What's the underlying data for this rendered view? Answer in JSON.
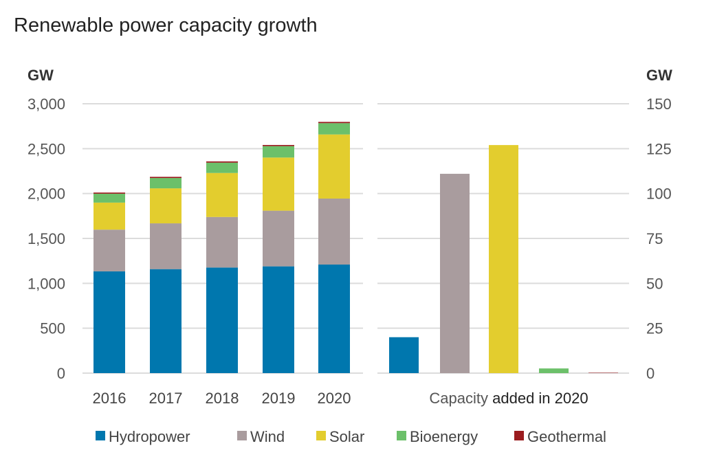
{
  "chart_data": [
    {
      "type": "bar",
      "stacked": true,
      "title": "Renewable power capacity growth",
      "ylabel": "GW",
      "categories": [
        "2016",
        "2017",
        "2018",
        "2019",
        "2020"
      ],
      "ylim": [
        0,
        3000
      ],
      "yticks": [
        "0",
        "500",
        "1,000",
        "1,500",
        "2,000",
        "2,500",
        "3,000"
      ],
      "ytick_values": [
        0,
        500,
        1000,
        1500,
        2000,
        2500,
        3000
      ],
      "grid": true,
      "series": [
        {
          "name": "Hydropower",
          "color": "#0077ae",
          "values": [
            1133,
            1158,
            1176,
            1189,
            1209
          ]
        },
        {
          "name": "Wind",
          "color": "#a99c9e",
          "values": [
            465,
            510,
            563,
            620,
            735
          ]
        },
        {
          "name": "Solar",
          "color": "#e3cd2e",
          "values": [
            301,
            390,
            490,
            592,
            714
          ]
        },
        {
          "name": "Bioenergy",
          "color": "#6cc06a",
          "values": [
            99,
            115,
            115,
            127,
            126
          ]
        },
        {
          "name": "Geothermal",
          "color": "#9b1c1f",
          "values": [
            13,
            13,
            14,
            13,
            14
          ]
        }
      ]
    },
    {
      "type": "bar",
      "ylabel": "GW",
      "xlabel_prefix": "Capacity",
      "xlabel_suffix": "added in 2020",
      "categories": [
        "Hydropower",
        "Wind",
        "Solar",
        "Bioenergy",
        "Geothermal"
      ],
      "values": [
        20,
        111,
        127,
        2.6,
        0.2
      ],
      "colors": [
        "#0077ae",
        "#a99c9e",
        "#e3cd2e",
        "#6cc06a",
        "#9b1c1f"
      ],
      "ylim": [
        0,
        150
      ],
      "yticks": [
        "0",
        "25",
        "50",
        "75",
        "100",
        "125",
        "150"
      ],
      "ytick_values": [
        0,
        25,
        50,
        75,
        100,
        125,
        150
      ],
      "grid": true
    }
  ],
  "legend": {
    "placement": "bottom",
    "items": [
      {
        "label": "Hydropower",
        "color": "#0077ae"
      },
      {
        "label": "Wind",
        "color": "#a99c9e"
      },
      {
        "label": "Solar",
        "color": "#e3cd2e"
      },
      {
        "label": "Bioenergy",
        "color": "#6cc06a"
      },
      {
        "label": "Geothermal",
        "color": "#9b1c1f"
      }
    ]
  }
}
